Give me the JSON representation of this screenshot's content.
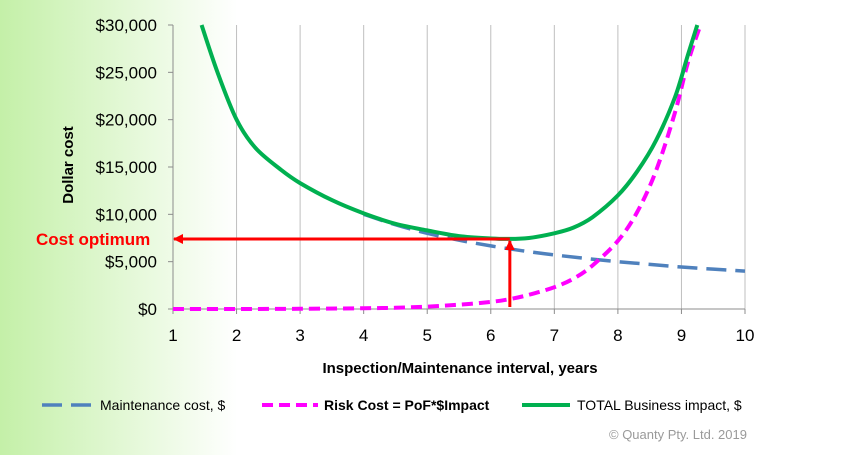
{
  "chart_data": {
    "type": "line",
    "xlabel": "Inspection/Maintenance interval, years",
    "ylabel": "Dollar cost",
    "xlim": [
      1,
      10
    ],
    "ylim": [
      0,
      30000
    ],
    "x_ticks": [
      "1",
      "2",
      "3",
      "4",
      "5",
      "6",
      "7",
      "8",
      "9",
      "10"
    ],
    "y_ticks": [
      "$0",
      "$5,000",
      "$10,000",
      "$15,000",
      "$20,000",
      "$25,000",
      "$30,000"
    ],
    "grid": "vertical-only",
    "legend_position": "bottom",
    "background": "light-green-gradient",
    "series": [
      {
        "name": "Maintenance cost, $",
        "style": "dashed",
        "color": "#4f81bd",
        "x": [
          4,
          4.5,
          5,
          5.5,
          6,
          6.5,
          7,
          7.5,
          8,
          8.5,
          9,
          9.5,
          10
        ],
        "y": [
          10000,
          8900,
          8000,
          7270,
          6670,
          6150,
          5710,
          5330,
          5000,
          4710,
          4440,
          4210,
          4000
        ]
      },
      {
        "name": "Risk Cost = PoF*$Impact",
        "style": "dashed-bold",
        "color": "#ff00ff",
        "x": [
          1,
          2,
          3,
          4,
          4.5,
          5,
          5.5,
          6,
          6.3,
          6.6,
          7,
          7.3,
          7.6,
          8,
          8.3,
          8.6,
          8.9,
          9.1,
          9.3
        ],
        "y": [
          0,
          0,
          20,
          80,
          130,
          250,
          450,
          750,
          1050,
          1500,
          2300,
          3200,
          4600,
          7200,
          10200,
          14600,
          20800,
          26000,
          30000
        ]
      },
      {
        "name": "TOTAL Business impact, $",
        "style": "solid",
        "color": "#00b050",
        "x": [
          1.45,
          1.7,
          2,
          2.3,
          2.7,
          3,
          3.5,
          4,
          4.5,
          5,
          5.5,
          6,
          6.3,
          6.6,
          7,
          7.3,
          7.6,
          8,
          8.3,
          8.6,
          8.9,
          9.1,
          9.25
        ],
        "y": [
          30000,
          25000,
          20000,
          17000,
          14700,
          13300,
          11500,
          10100,
          9000,
          8300,
          7700,
          7450,
          7400,
          7500,
          8000,
          8600,
          9700,
          12000,
          14500,
          17800,
          22400,
          26800,
          30000
        ]
      }
    ],
    "annotations": [
      {
        "text": "Cost optimum",
        "color": "#ff0000",
        "x": 6.3,
        "y": 7400
      }
    ]
  },
  "copyright": "© Quanty Pty. Ltd. 2019"
}
